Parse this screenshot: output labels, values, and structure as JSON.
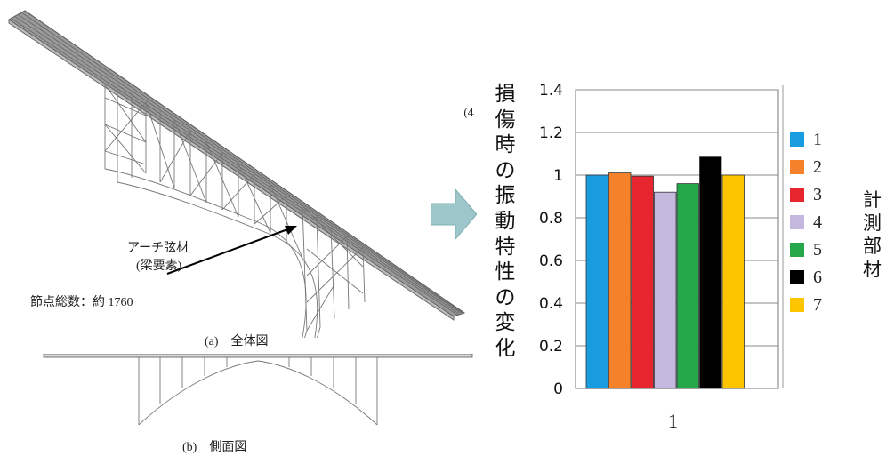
{
  "left": {
    "callout_label": "アーチ弦材",
    "callout_sublabel": "(梁要素)",
    "node_count": "節点総数：約 1760",
    "caption_a": "(a)　全体図",
    "caption_b": "(b)　側面図"
  },
  "stray_mark": "(4",
  "arrow_color": "#9cc6c9",
  "chart_data": {
    "type": "bar",
    "categories": [
      "1"
    ],
    "ylabel": "損傷時の振動特性の変化",
    "ylabel_chars": [
      "損",
      "傷",
      "時",
      "の",
      "振",
      "動",
      "特",
      "性",
      "の",
      "変",
      "化"
    ],
    "ylim": [
      0,
      1.4
    ],
    "yticks": [
      "0",
      "0.2",
      "0.4",
      "0.6",
      "0.8",
      "1",
      "1.2",
      "1.4"
    ],
    "grid": true,
    "legend_title": "計測部材",
    "legend_title_chars": [
      "計",
      "測",
      "部",
      "材"
    ],
    "legend_position": "right",
    "series": [
      {
        "name": "1",
        "values": [
          1.0
        ],
        "color": "#1a9de0"
      },
      {
        "name": "2",
        "values": [
          1.01
        ],
        "color": "#f5822a"
      },
      {
        "name": "3",
        "values": [
          0.995
        ],
        "color": "#e8262f"
      },
      {
        "name": "4",
        "values": [
          0.92
        ],
        "color": "#c5b8de"
      },
      {
        "name": "5",
        "values": [
          0.96
        ],
        "color": "#25a84a"
      },
      {
        "name": "6",
        "values": [
          1.085
        ],
        "color": "#000000"
      },
      {
        "name": "7",
        "values": [
          1.0
        ],
        "color": "#fdc400"
      }
    ]
  }
}
